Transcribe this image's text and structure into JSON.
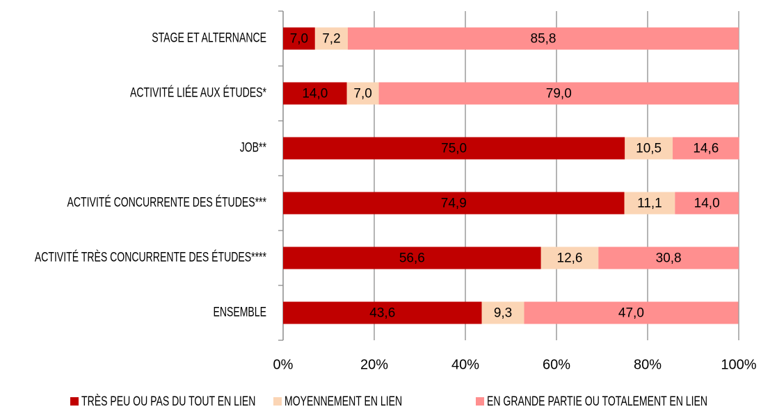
{
  "chart_data": {
    "type": "stacked-barh",
    "categories": [
      "STAGE ET ALTERNANCE",
      "ACTIVITÉ LIÉE AUX ÉTUDES*",
      "JOB**",
      "ACTIVITÉ CONCURRENTE DES ÉTUDES***",
      "ACTIVITÉ TRÈS CONCURRENTE DES ÉTUDES****",
      "ENSEMBLE"
    ],
    "series": [
      {
        "name": "TRÈS PEU OU PAS DU TOUT EN LIEN",
        "color": "#c00000",
        "values": [
          7.0,
          14.0,
          75.0,
          74.9,
          56.6,
          43.6
        ],
        "value_labels": [
          "7,0",
          "14,0",
          "75,0",
          "74,9",
          "56,6",
          "43,6"
        ]
      },
      {
        "name": "MOYENNEMENT EN LIEN",
        "color": "#fbd5b5",
        "values": [
          7.2,
          7.0,
          10.5,
          11.1,
          12.6,
          9.3
        ],
        "value_labels": [
          "7,2",
          "7,0",
          "10,5",
          "11,1",
          "12,6",
          "9,3"
        ]
      },
      {
        "name": "EN GRANDE PARTIE OU TOTALEMENT EN LIEN",
        "color": "#ff8f8f",
        "values": [
          85.8,
          79.0,
          14.6,
          14.0,
          30.8,
          47.0
        ],
        "value_labels": [
          "85,8",
          "79,0",
          "14,6",
          "14,0",
          "30,8",
          "47,0"
        ]
      }
    ],
    "xlim": [
      0,
      100
    ],
    "xticks": [
      {
        "value": 0,
        "label": "0%"
      },
      {
        "value": 20,
        "label": "20%"
      },
      {
        "value": 40,
        "label": "40%"
      },
      {
        "value": 60,
        "label": "60%"
      },
      {
        "value": 80,
        "label": "80%"
      },
      {
        "value": 100,
        "label": "100%"
      }
    ],
    "grid": true,
    "legend": "bottom"
  }
}
